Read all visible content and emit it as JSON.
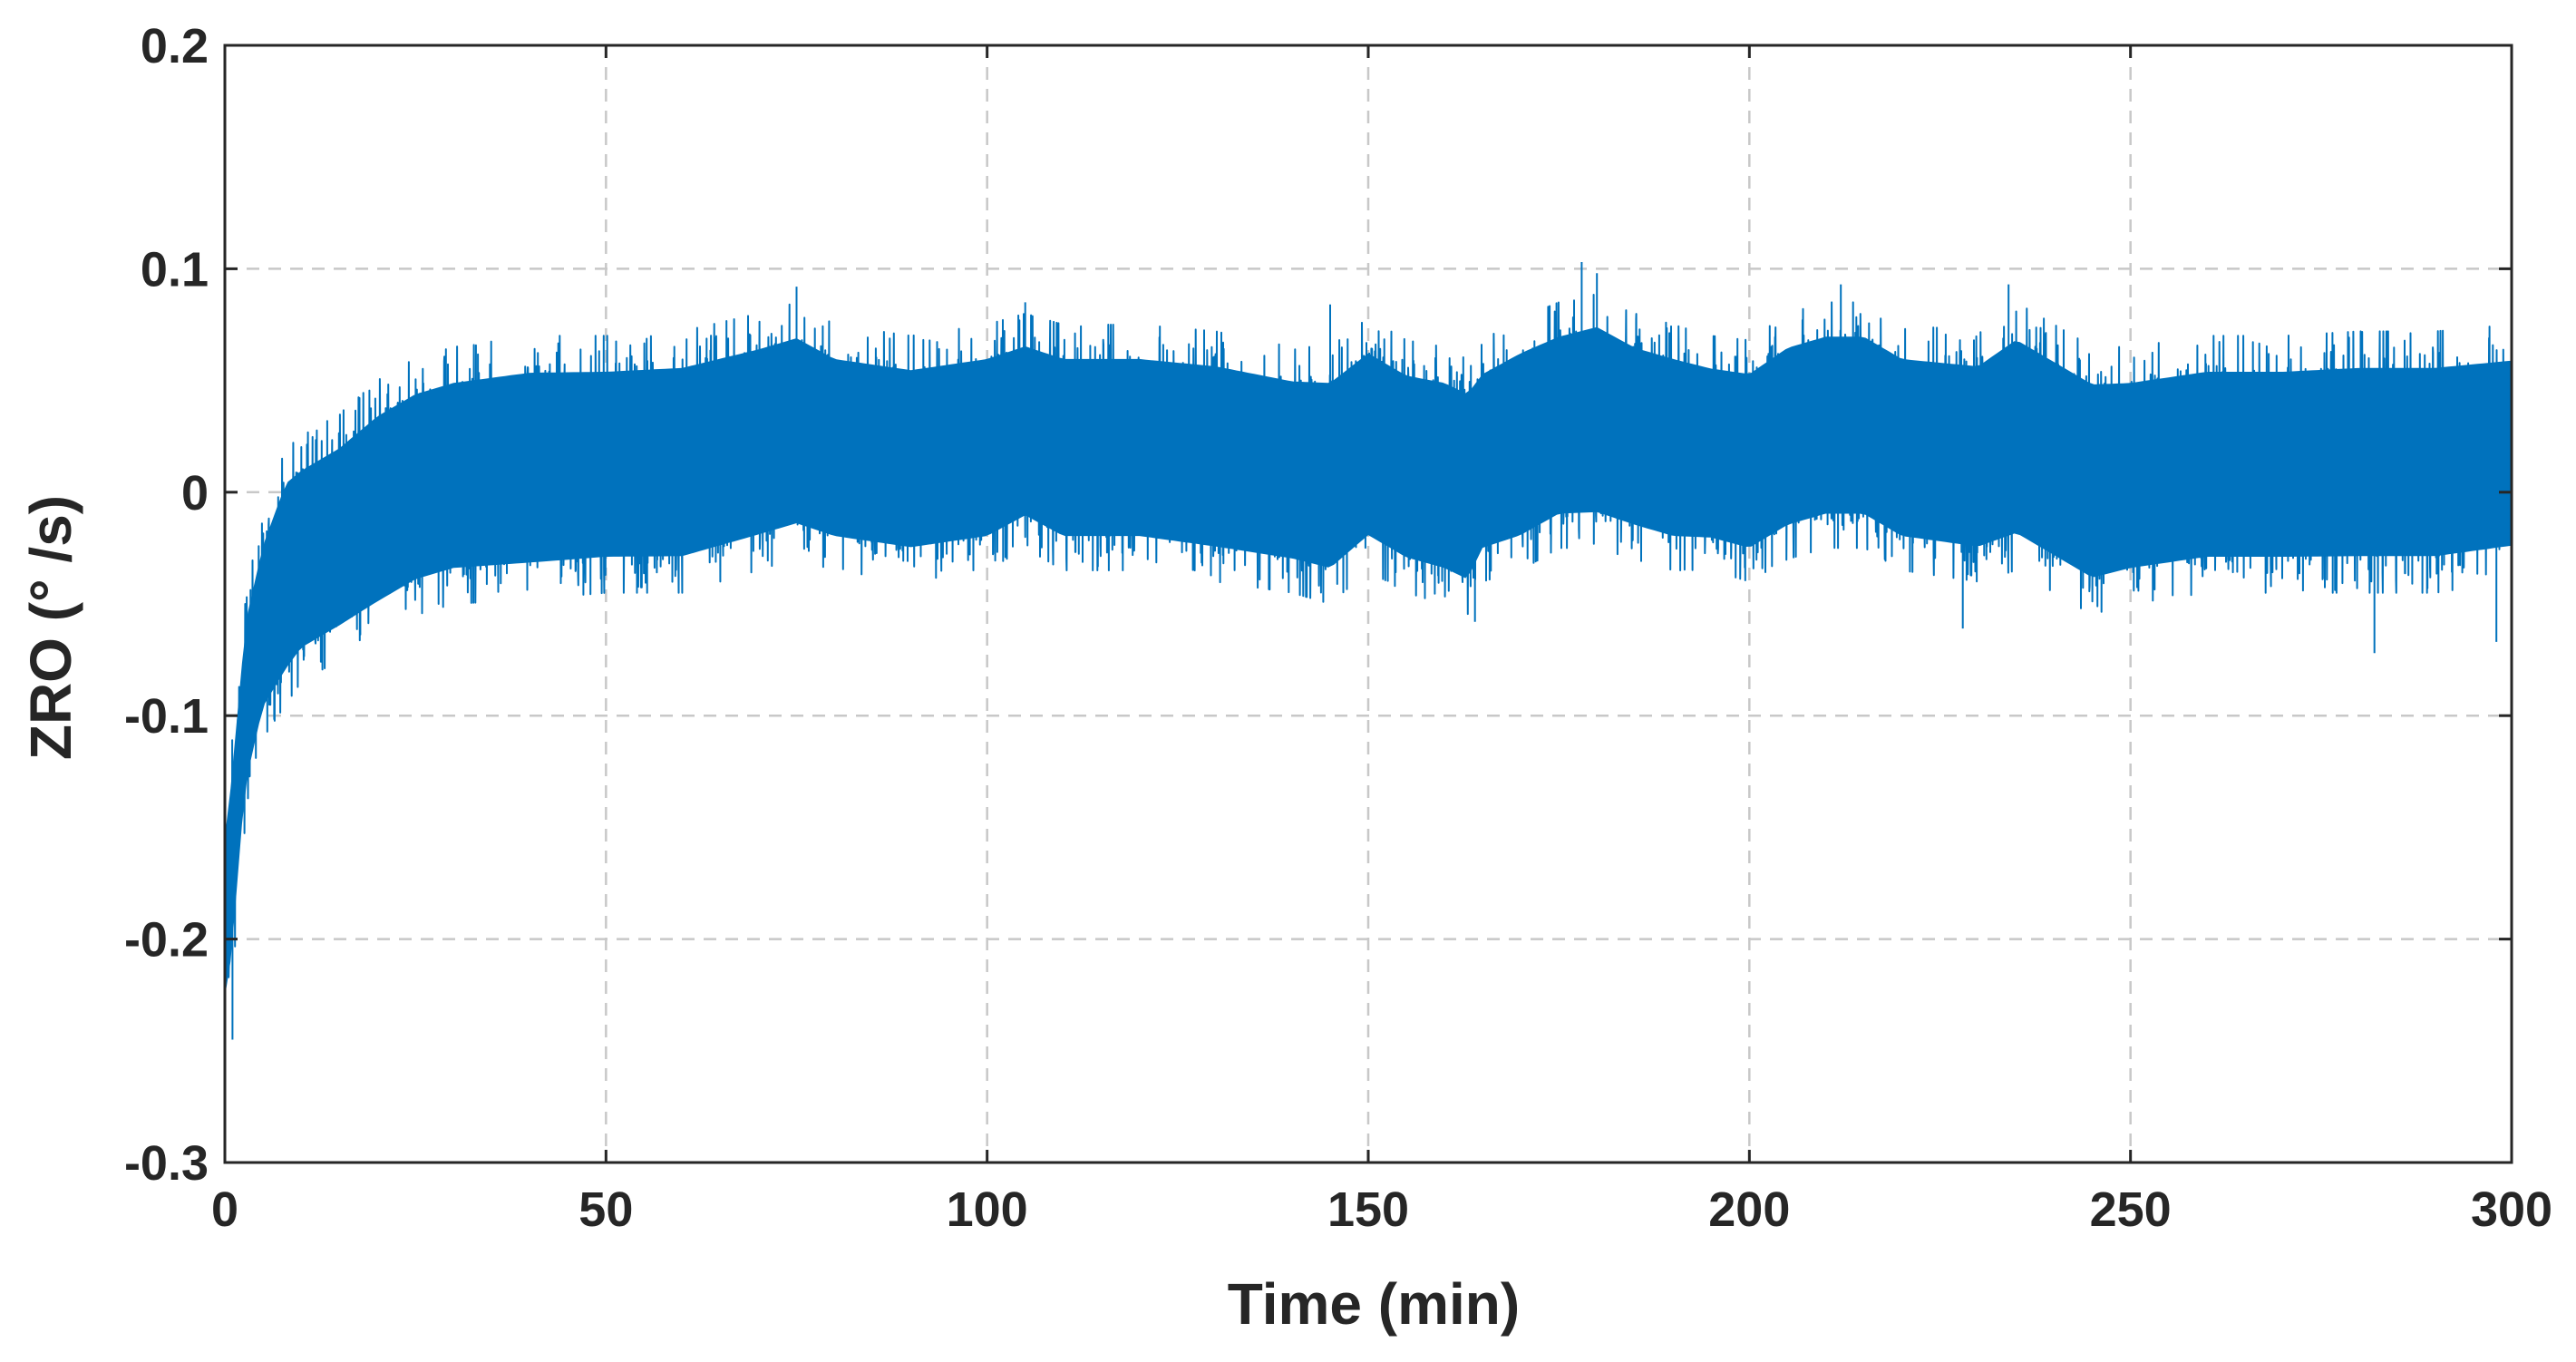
{
  "chart_data": {
    "type": "line",
    "xlabel": "Time (min)",
    "ylabel": "ZRO (° /s)",
    "xlim": [
      0,
      300
    ],
    "ylim": [
      -0.3,
      0.2
    ],
    "xticks": [
      0,
      50,
      100,
      150,
      200,
      250,
      300
    ],
    "xtick_labels": [
      "0",
      "50",
      "100",
      "150",
      "200",
      "250",
      "300"
    ],
    "yticks": [
      -0.3,
      -0.2,
      -0.1,
      0,
      0.1,
      0.2
    ],
    "ytick_labels": [
      "-0.3",
      "-0.2",
      "-0.1",
      "0",
      "0.1",
      "0.2"
    ],
    "grid": true,
    "line_color": "#0072BD",
    "series": [
      {
        "envelope_x": [
          0,
          1,
          2,
          3,
          5,
          8,
          10,
          15,
          20,
          25,
          30,
          40,
          50,
          60,
          70,
          75,
          80,
          90,
          100,
          105,
          110,
          120,
          130,
          140,
          145,
          150,
          155,
          160,
          163,
          165,
          170,
          175,
          180,
          185,
          190,
          195,
          200,
          205,
          210,
          215,
          220,
          230,
          235,
          240,
          245,
          250,
          260,
          270,
          280,
          290,
          300
        ],
        "envelope_upper": [
          -0.14,
          -0.11,
          -0.07,
          -0.04,
          -0.01,
          0.02,
          0.025,
          0.035,
          0.05,
          0.06,
          0.065,
          0.07,
          0.07,
          0.072,
          0.08,
          0.085,
          0.075,
          0.07,
          0.075,
          0.08,
          0.075,
          0.075,
          0.072,
          0.065,
          0.065,
          0.078,
          0.068,
          0.065,
          0.06,
          0.068,
          0.078,
          0.085,
          0.09,
          0.08,
          0.075,
          0.07,
          0.068,
          0.08,
          0.085,
          0.085,
          0.075,
          0.072,
          0.085,
          0.075,
          0.065,
          0.065,
          0.07,
          0.07,
          0.072,
          0.072,
          0.075
        ],
        "envelope_lower": [
          -0.24,
          -0.22,
          -0.17,
          -0.14,
          -0.11,
          -0.095,
          -0.085,
          -0.075,
          -0.065,
          -0.055,
          -0.05,
          -0.048,
          -0.045,
          -0.045,
          -0.035,
          -0.03,
          -0.035,
          -0.04,
          -0.035,
          -0.025,
          -0.035,
          -0.035,
          -0.04,
          -0.045,
          -0.05,
          -0.035,
          -0.045,
          -0.05,
          -0.055,
          -0.04,
          -0.035,
          -0.025,
          -0.025,
          -0.03,
          -0.035,
          -0.035,
          -0.04,
          -0.03,
          -0.025,
          -0.025,
          -0.035,
          -0.04,
          -0.035,
          -0.045,
          -0.055,
          -0.05,
          -0.045,
          -0.045,
          -0.045,
          -0.045,
          -0.04
        ],
        "spikes": [
          [
            0,
            -0.25
          ],
          [
            1,
            -0.245
          ],
          [
            75,
            0.092
          ],
          [
            105,
            0.085
          ],
          [
            145,
            0.084
          ],
          [
            178,
            0.103
          ],
          [
            180,
            0.098
          ],
          [
            212,
            0.093
          ],
          [
            234,
            0.093
          ],
          [
            282,
            -0.072
          ],
          [
            298,
            -0.067
          ],
          [
            228,
            -0.061
          ],
          [
            164,
            -0.058
          ]
        ]
      }
    ]
  }
}
